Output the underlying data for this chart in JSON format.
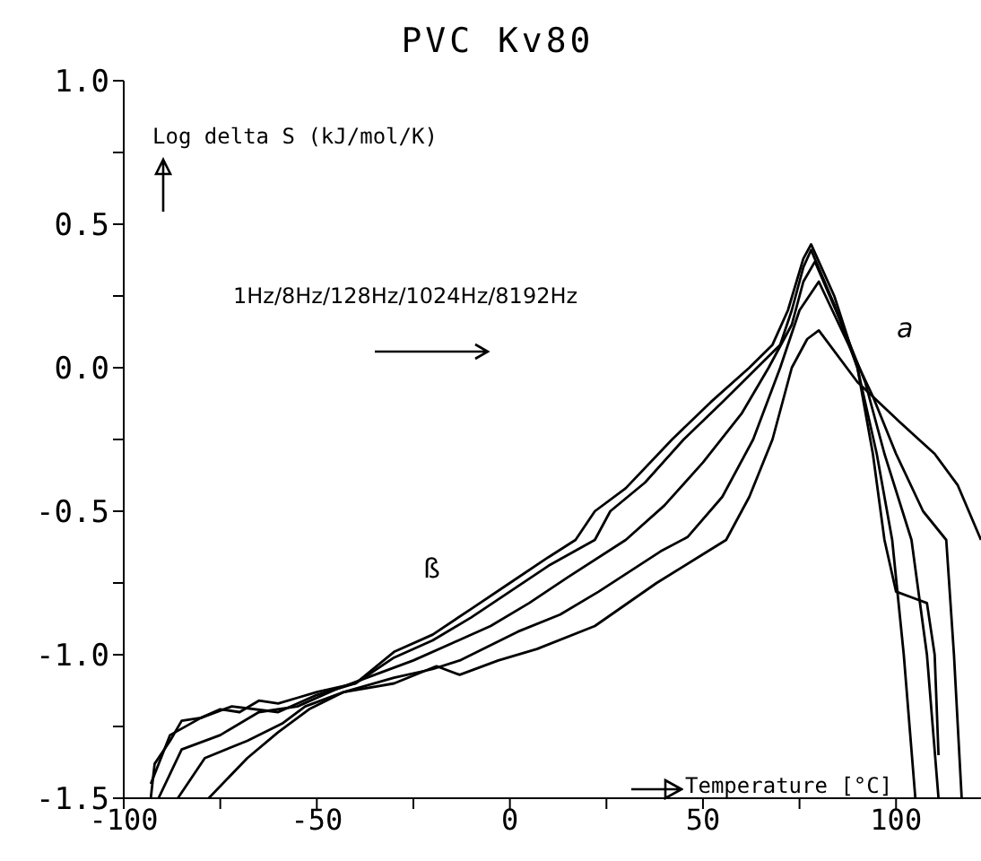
{
  "chart_data": {
    "type": "line",
    "title": "PVC Kv80",
    "xlabel": "Temperature [°C]",
    "ylabel": "Log delta S (kJ/mol/K)",
    "xlim": [
      -100,
      122
    ],
    "xticks": [
      -100,
      {
        "value": -75,
        "label": null
      },
      -50,
      {
        "value": -25,
        "label": null
      },
      0,
      {
        "value": 25,
        "label": null
      },
      50,
      {
        "value": 75,
        "label": null
      },
      100
    ],
    "ylim": [
      -1.5,
      1
    ],
    "yticks": [
      {
        "value": -1.5,
        "label": "-1.5"
      },
      {
        "value": -1.25,
        "label": null
      },
      {
        "value": -1,
        "label": "-1.0"
      },
      {
        "value": -0.75,
        "label": null
      },
      -0.5,
      {
        "value": -0.25,
        "label": null
      },
      {
        "value": 0,
        "label": "0.0"
      },
      {
        "value": 0.25,
        "label": null
      },
      0.5,
      {
        "value": 0.75,
        "label": null
      },
      {
        "value": 1,
        "label": "1.0"
      }
    ],
    "grid": false,
    "legend": false,
    "marker": "none",
    "line_style": "solid",
    "annotations": [
      "1Hz/8Hz/128Hz/1024Hz/8192Hz",
      "a",
      "ß"
    ],
    "series": [
      {
        "color": "#000000",
        "x": [
          -93,
          -92,
          -88,
          -85,
          -80,
          -75,
          -70,
          -65,
          -60,
          -55,
          -50,
          -40,
          -30,
          -20,
          -10,
          0,
          10,
          17,
          22,
          30,
          42,
          52,
          62,
          68,
          72,
          76,
          78,
          84,
          90,
          94,
          97,
          100,
          104,
          108,
          110,
          111
        ],
        "values": [
          -1.5,
          -1.38,
          -1.3,
          -1.23,
          -1.22,
          -1.19,
          -1.2,
          -1.16,
          -1.17,
          -1.15,
          -1.13,
          -1.1,
          -0.99,
          -0.93,
          -0.84,
          -0.75,
          -0.66,
          -0.6,
          -0.5,
          -0.42,
          -0.25,
          -0.12,
          0,
          0.08,
          0.2,
          0.38,
          0.43,
          0.25,
          0,
          -0.3,
          -0.6,
          -0.78,
          -0.8,
          -0.82,
          -1,
          -1.35
        ]
      },
      {
        "color": "#000000",
        "x": [
          -93,
          -88,
          -80,
          -72,
          -60,
          -50,
          -40,
          -30,
          -20,
          -10,
          0,
          10,
          22,
          26,
          35,
          45,
          55,
          64,
          70,
          73,
          76,
          78,
          84,
          90,
          95,
          99,
          102,
          105
        ],
        "values": [
          -1.45,
          -1.28,
          -1.22,
          -1.18,
          -1.2,
          -1.14,
          -1.1,
          -1.01,
          -0.95,
          -0.87,
          -0.78,
          -0.69,
          -0.6,
          -0.5,
          -0.4,
          -0.25,
          -0.12,
          0,
          0.08,
          0.2,
          0.35,
          0.41,
          0.22,
          0,
          -0.3,
          -0.6,
          -1,
          -1.5
        ]
      },
      {
        "color": "#000000",
        "x": [
          -91,
          -85,
          -75,
          -65,
          -55,
          -45,
          -35,
          -25,
          -15,
          -5,
          5,
          15,
          30,
          40,
          50,
          60,
          67,
          73,
          76,
          79,
          86,
          92,
          97,
          104,
          108,
          111
        ],
        "values": [
          -1.5,
          -1.33,
          -1.28,
          -1.2,
          -1.18,
          -1.12,
          -1.07,
          -1.02,
          -0.96,
          -0.9,
          -0.82,
          -0.73,
          -0.6,
          -0.48,
          -0.33,
          -0.16,
          0,
          0.15,
          0.3,
          0.37,
          0.15,
          -0.05,
          -0.3,
          -0.6,
          -1,
          -1.5
        ]
      },
      {
        "color": "#000000",
        "x": [
          -86,
          -79,
          -68,
          -59,
          -53,
          -43,
          -30,
          -20,
          -13,
          2,
          13,
          23,
          39,
          46,
          55,
          63,
          70,
          75,
          80,
          87,
          94,
          100,
          107,
          113,
          115,
          117
        ],
        "values": [
          -1.5,
          -1.36,
          -1.3,
          -1.24,
          -1.18,
          -1.13,
          -1.08,
          -1.05,
          -1.02,
          -0.92,
          -0.86,
          -0.78,
          -0.64,
          -0.59,
          -0.45,
          -0.25,
          0,
          0.2,
          0.3,
          0.1,
          -0.1,
          -0.3,
          -0.5,
          -0.6,
          -1,
          -1.5
        ]
      },
      {
        "color": "#000000",
        "x": [
          -78,
          -68,
          -60,
          -52,
          -43,
          -30,
          -19,
          -13,
          -3,
          7,
          22,
          38,
          50,
          56,
          62,
          68,
          73,
          77,
          80,
          90,
          101,
          110,
          116,
          122
        ],
        "values": [
          -1.5,
          -1.36,
          -1.27,
          -1.19,
          -1.13,
          -1.1,
          -1.04,
          -1.07,
          -1.02,
          -0.98,
          -0.9,
          -0.75,
          -0.65,
          -0.6,
          -0.45,
          -0.25,
          0,
          0.1,
          0.13,
          -0.05,
          -0.19,
          -0.3,
          -0.41,
          -0.6
        ]
      }
    ]
  }
}
